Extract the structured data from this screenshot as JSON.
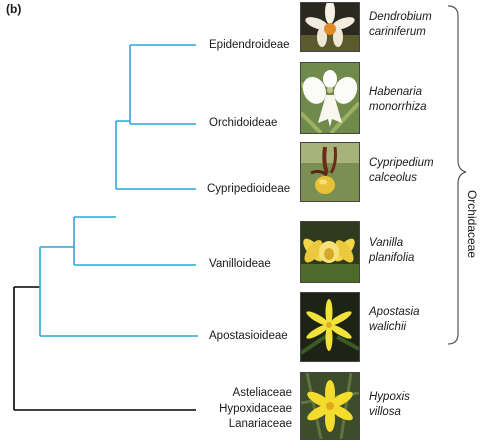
{
  "panel_label": "(b)",
  "family_label": "Orchidaceae",
  "colors": {
    "orchid_branch": "#2aa9d6",
    "outgroup_branch": "#000000"
  },
  "taxa": [
    {
      "name": "Epidendroideae",
      "species_line1": "Dendrobium",
      "species_line2": "cariniferum"
    },
    {
      "name": "Orchidoideae",
      "species_line1": "Habenaria",
      "species_line2": "monorrhiza"
    },
    {
      "name": "Cypripedioideae",
      "species_line1": "Cypripedium",
      "species_line2": "calceolus"
    },
    {
      "name": "Vanilloideae",
      "species_line1": "Vanilla",
      "species_line2": "planifolia"
    },
    {
      "name": "Apostasioideae",
      "species_line1": "Apostasia",
      "species_line2": "walichii"
    }
  ],
  "outgroup": {
    "names": [
      "Asteliaceae",
      "Hypoxidaceae",
      "Lanariaceae"
    ],
    "species_line1": "Hypoxis",
    "species_line2": "villosa"
  },
  "photo_icons": [
    "dendrobium-flower",
    "habenaria-flower",
    "cypripedium-flower",
    "vanilla-flower",
    "apostasia-flower",
    "hypoxis-flower"
  ]
}
